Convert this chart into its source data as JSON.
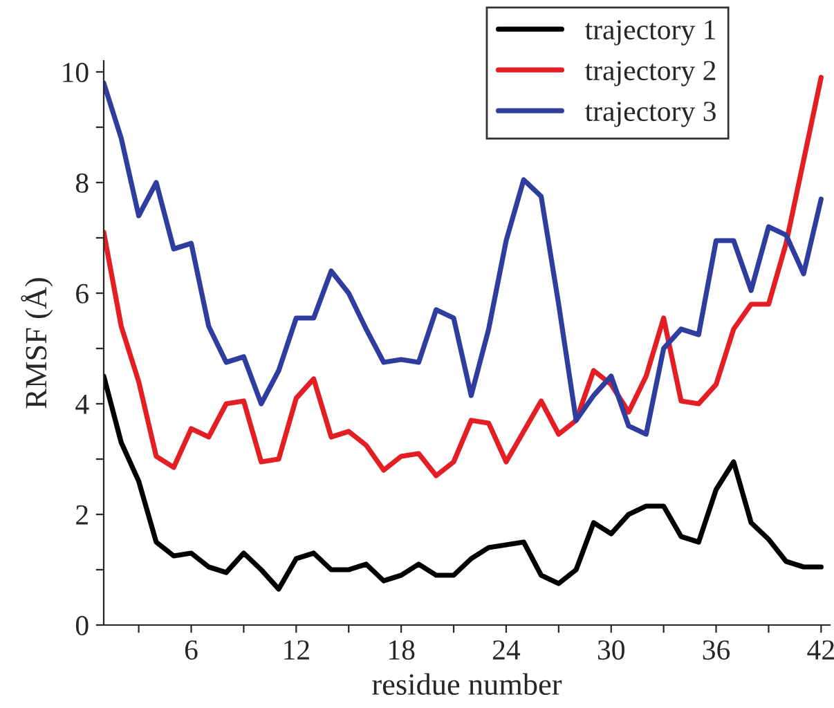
{
  "chart_data": {
    "type": "line",
    "xlabel": "residue number",
    "ylabel": "RMSF (Å)",
    "x": [
      1,
      2,
      3,
      4,
      5,
      6,
      7,
      8,
      9,
      10,
      11,
      12,
      13,
      14,
      15,
      16,
      17,
      18,
      19,
      20,
      21,
      22,
      23,
      24,
      25,
      26,
      27,
      28,
      29,
      30,
      31,
      32,
      33,
      34,
      35,
      36,
      37,
      38,
      39,
      40,
      41,
      42
    ],
    "series": [
      {
        "name": "trajectory 1",
        "color": "#000000",
        "values": [
          4.5,
          3.3,
          2.6,
          1.5,
          1.25,
          1.3,
          1.05,
          0.95,
          1.3,
          1.0,
          0.65,
          1.2,
          1.3,
          1.0,
          1.0,
          1.1,
          0.8,
          0.9,
          1.1,
          0.9,
          0.9,
          1.2,
          1.4,
          1.45,
          1.5,
          0.9,
          0.75,
          1.0,
          1.85,
          1.65,
          2.0,
          2.15,
          2.15,
          1.6,
          1.5,
          2.45,
          2.95,
          1.85,
          1.55,
          1.15,
          1.05,
          1.05
        ]
      },
      {
        "name": "trajectory 2",
        "color": "#e31e24",
        "values": [
          7.1,
          5.4,
          4.4,
          3.05,
          2.85,
          3.55,
          3.4,
          4.0,
          4.05,
          2.95,
          3.0,
          4.1,
          4.45,
          3.4,
          3.5,
          3.25,
          2.8,
          3.05,
          3.1,
          2.7,
          2.95,
          3.7,
          3.65,
          2.95,
          3.5,
          4.05,
          3.45,
          3.7,
          4.6,
          4.35,
          3.85,
          4.5,
          5.55,
          4.05,
          4.0,
          4.35,
          5.35,
          5.8,
          5.8,
          6.9,
          8.4,
          9.9
        ]
      },
      {
        "name": "trajectory 3",
        "color": "#2e3d9e",
        "values": [
          9.8,
          8.8,
          7.4,
          8.0,
          6.8,
          6.9,
          5.4,
          4.75,
          4.85,
          4.0,
          4.6,
          5.55,
          5.55,
          6.4,
          6.0,
          5.35,
          4.75,
          4.8,
          4.75,
          5.7,
          5.55,
          4.15,
          5.35,
          6.95,
          8.05,
          7.75,
          5.8,
          3.7,
          4.15,
          4.5,
          3.6,
          3.45,
          5.0,
          5.35,
          5.25,
          6.95,
          6.95,
          6.05,
          7.2,
          7.05,
          6.35,
          7.7
        ]
      }
    ],
    "xlim": [
      1,
      42.5
    ],
    "xticks": [
      {
        "value": 3,
        "label": null
      },
      6,
      {
        "value": 9,
        "label": null
      },
      12,
      {
        "value": 15,
        "label": null
      },
      18,
      {
        "value": 21,
        "label": null
      },
      24,
      {
        "value": 27,
        "label": null
      },
      30,
      {
        "value": 33,
        "label": null
      },
      36,
      {
        "value": 39,
        "label": null
      },
      42
    ],
    "ylim": [
      0,
      10.2
    ],
    "yticks": [
      0,
      {
        "value": 1,
        "label": null
      },
      2,
      {
        "value": 3,
        "label": null
      },
      4,
      {
        "value": 5,
        "label": null
      },
      6,
      {
        "value": 7,
        "label": null
      },
      8,
      {
        "value": 9,
        "label": null
      },
      10
    ],
    "grid": false,
    "legend": "top right",
    "marker": "none",
    "line_style": "solid"
  }
}
